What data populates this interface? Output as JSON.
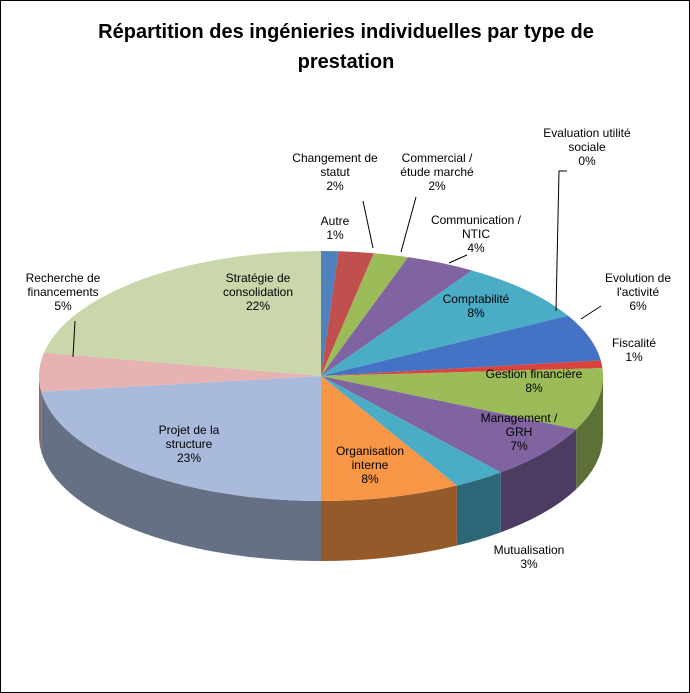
{
  "chart_data": {
    "type": "pie3d",
    "title": "Répartition des ingénieries individuelles par type de prestation",
    "categories": [
      "Autre",
      "Changement de\nstatut",
      "Commercial /\nétude marché",
      "Communication /\nNTIC",
      "Comptabilité",
      "Evaluation utilité\nsociale",
      "Evolution de\nl'activité",
      "Fiscalité",
      "Gestion financière",
      "Management /\nGRH",
      "Mutualisation",
      "Organisation\ninterne",
      "Projet de la\nstructure",
      "Recherche de\nfinancements",
      "Stratégie de\nconsolidation"
    ],
    "values": [
      1,
      2,
      2,
      4,
      8,
      0,
      6,
      1,
      8,
      7,
      3,
      8,
      23,
      5,
      22
    ],
    "value_labels": [
      "1%",
      "2%",
      "2%",
      "4%",
      "8%",
      "0%",
      "6%",
      "1%",
      "8%",
      "7%",
      "3%",
      "8%",
      "23%",
      "5%",
      "22%"
    ],
    "colors": [
      "#4F81BD",
      "#C0504D",
      "#9BBB59",
      "#8064A2",
      "#4BACC6",
      "#F79646",
      "#4472C4",
      "#D9443F",
      "#9BBB59",
      "#8064A2",
      "#4BACC6",
      "#F79646",
      "#A9BADC",
      "#E6B3B2",
      "#C9D7AB"
    ]
  }
}
